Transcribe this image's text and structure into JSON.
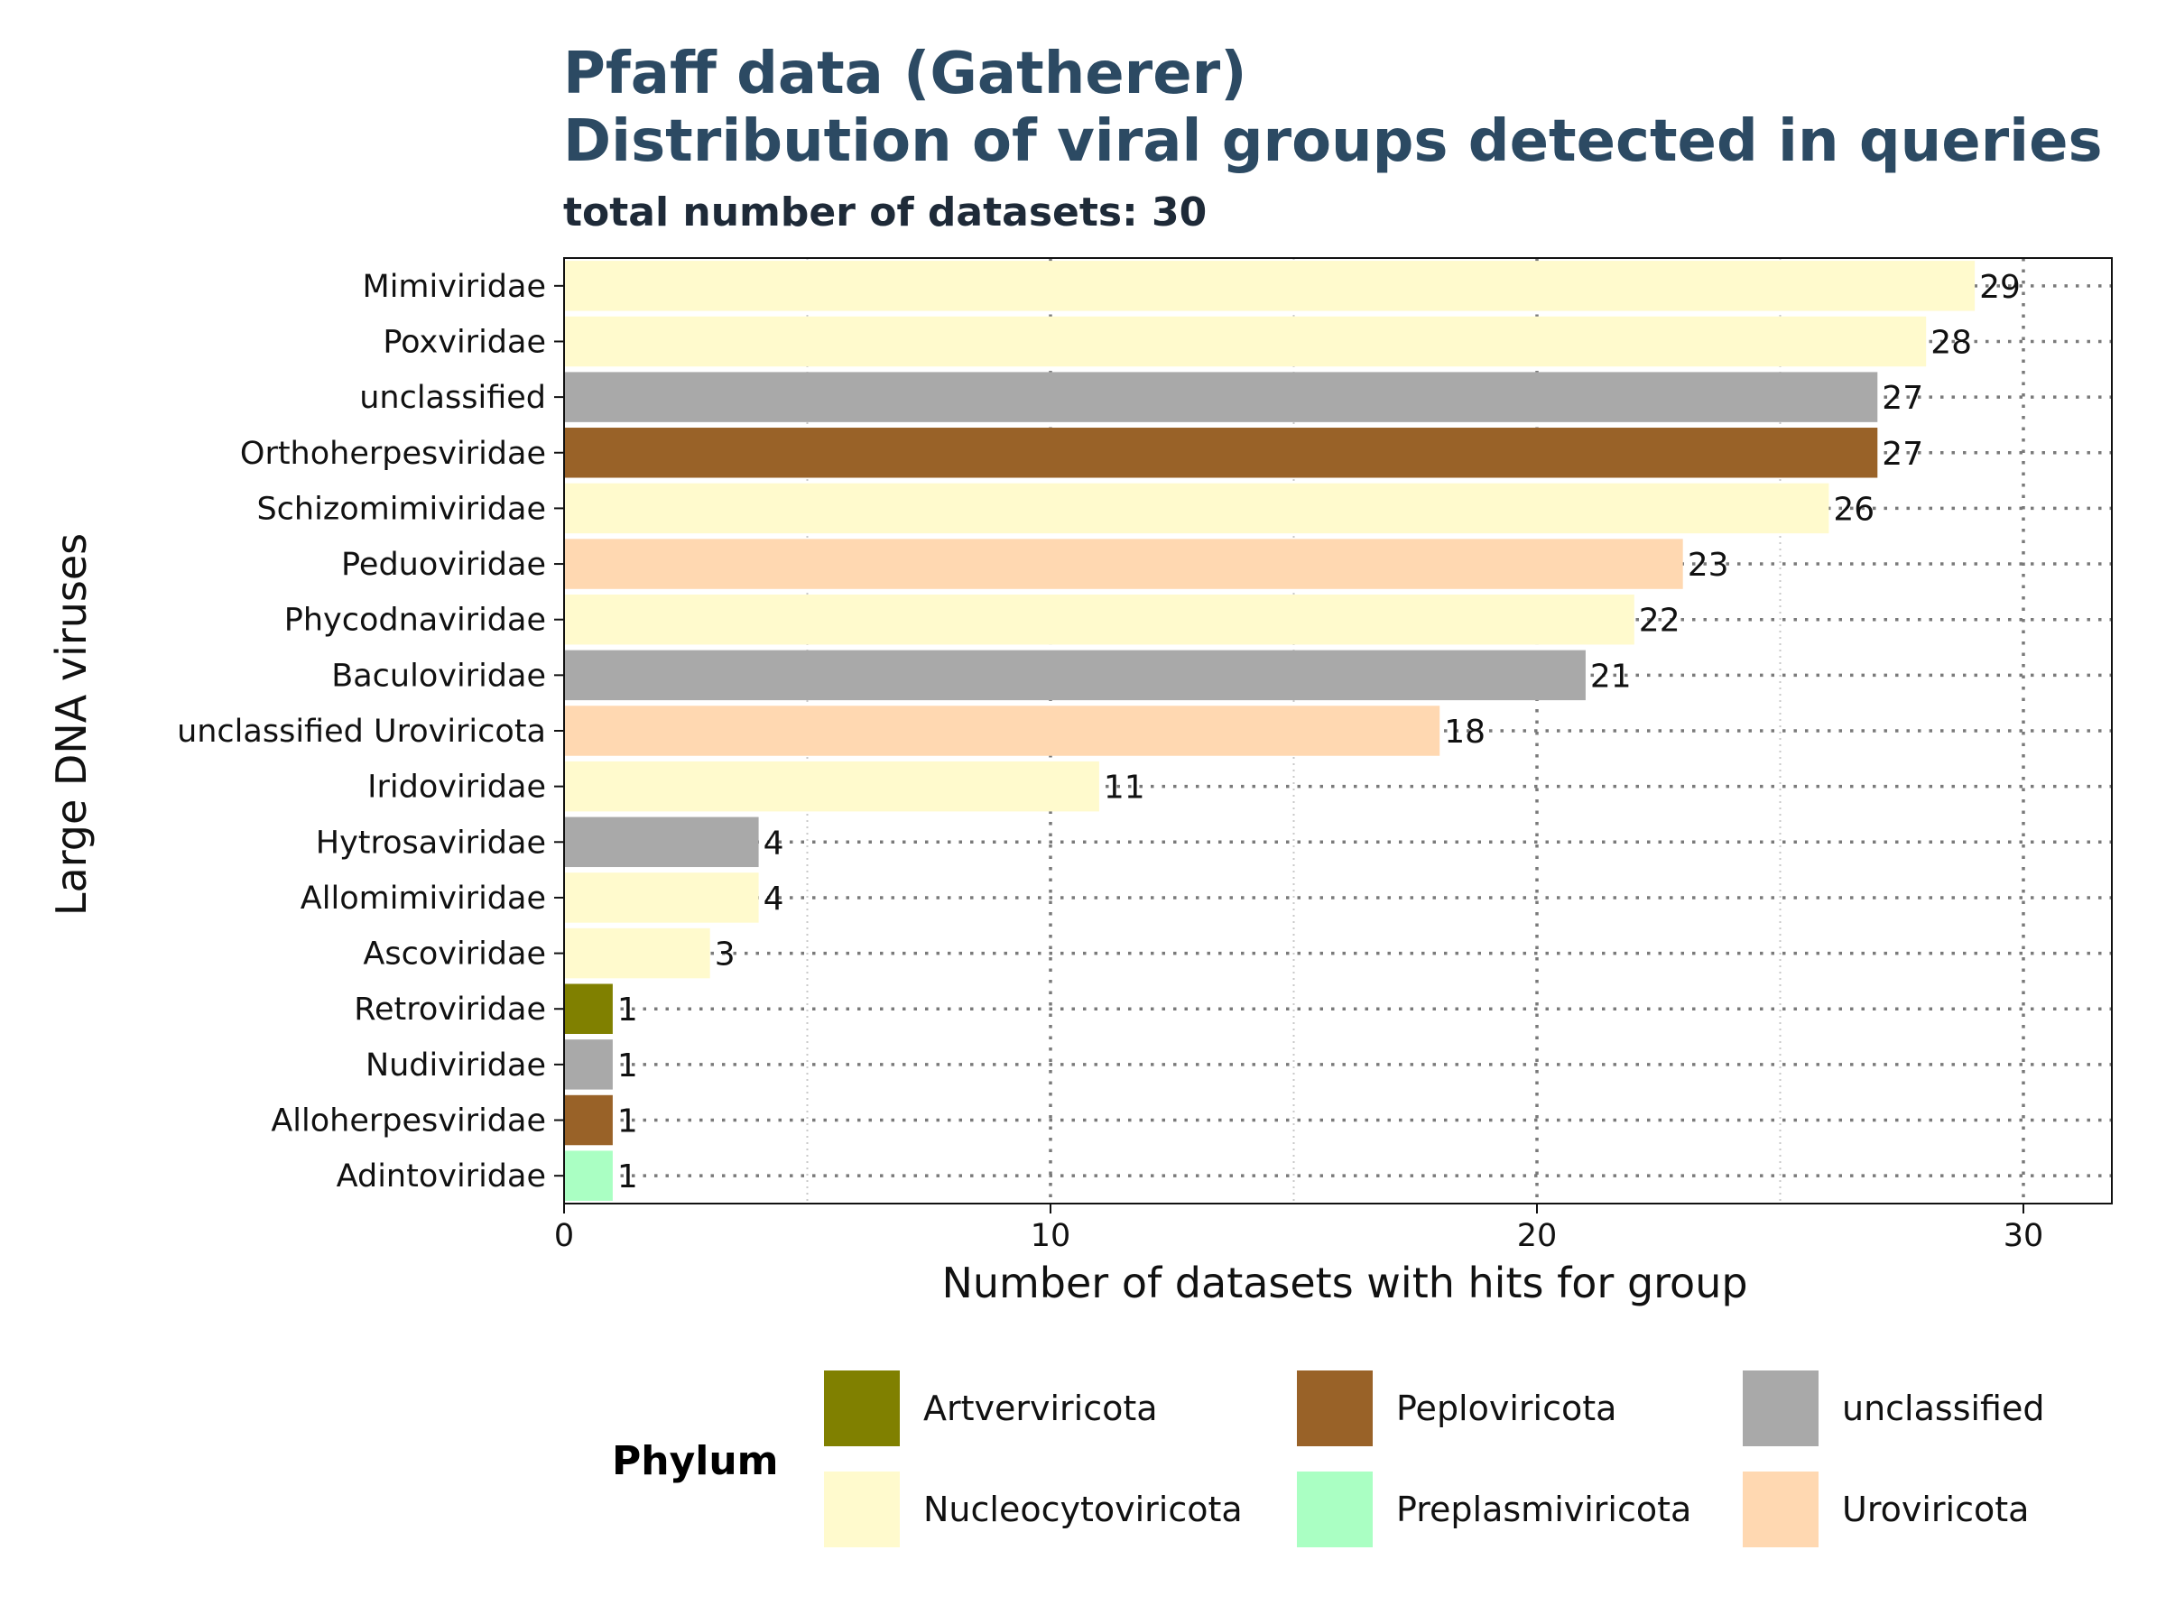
{
  "chart_data": {
    "type": "bar",
    "orientation": "horizontal",
    "title_line1": "Pfaff data (Gatherer)",
    "title_line2": "Distribution of viral groups detected in queries",
    "subtitle": "total number of datasets: 30",
    "xlabel": "Number of datasets with hits for group",
    "ylabel": "Large DNA viruses",
    "xlim": [
      0,
      32
    ],
    "xticks": [
      0,
      10,
      20,
      30
    ],
    "grid": "on",
    "legend_title": "Phylum",
    "legend_position": "bottom",
    "categories": [
      "Mimiviridae",
      "Poxviridae",
      "unclassified",
      "Orthoherpesviridae",
      "Schizomimiviridae",
      "Peduoviridae",
      "Phycodnaviridae",
      "Baculoviridae",
      "unclassified Uroviricota",
      "Iridoviridae",
      "Hytrosaviridae",
      "Allomimiviridae",
      "Ascoviridae",
      "Retroviridae",
      "Nudiviridae",
      "Alloherpesviridae",
      "Adintoviridae"
    ],
    "values": [
      29,
      28,
      27,
      27,
      26,
      23,
      22,
      21,
      18,
      11,
      4,
      4,
      3,
      1,
      1,
      1,
      1
    ],
    "phylum": [
      "Nucleocytoviricota",
      "Nucleocytoviricota",
      "unclassified",
      "Peploviricota",
      "Nucleocytoviricota",
      "Uroviricota",
      "Nucleocytoviricota",
      "unclassified",
      "Uroviricota",
      "Nucleocytoviricota",
      "unclassified",
      "Nucleocytoviricota",
      "Nucleocytoviricota",
      "Artverviricota",
      "unclassified",
      "Peploviricota",
      "Preplasmiviricota"
    ],
    "legend": [
      {
        "name": "Artverviricota",
        "color": "#808000"
      },
      {
        "name": "Peploviricota",
        "color": "#996228"
      },
      {
        "name": "unclassified",
        "color": "#a9a9a9"
      },
      {
        "name": "Nucleocytoviricota",
        "color": "#fffacd"
      },
      {
        "name": "Preplasmiviricota",
        "color": "#aaffc3"
      },
      {
        "name": "Uroviricota",
        "color": "#ffd8b1"
      }
    ]
  }
}
